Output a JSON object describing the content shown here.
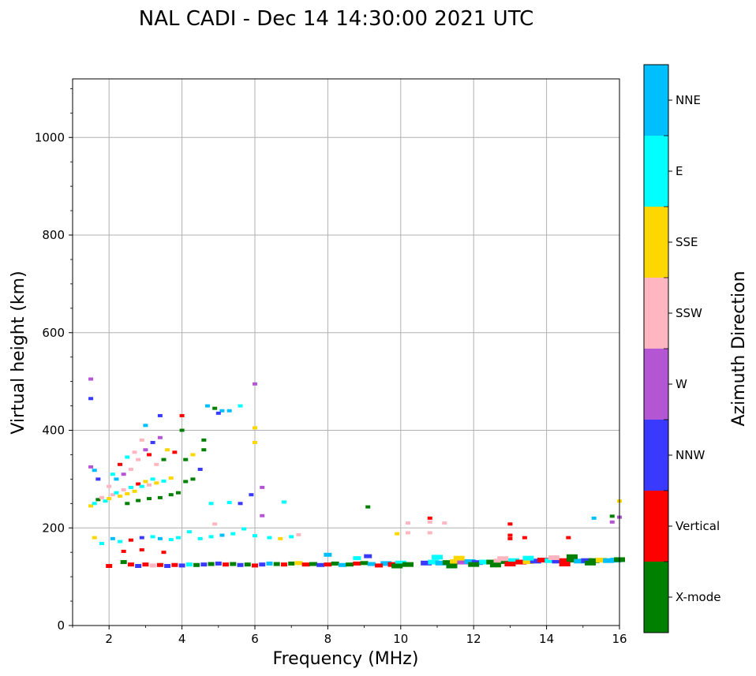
{
  "chart_data": {
    "type": "scatter",
    "title": "NAL CADI - Dec 14 14:30:00 2021 UTC",
    "xlabel": "Frequency (MHz)",
    "ylabel": "Virtual height (km)",
    "xlim": [
      1,
      16
    ],
    "ylim": [
      0,
      1120
    ],
    "xticks": [
      2,
      4,
      6,
      8,
      10,
      12,
      14,
      16
    ],
    "yticks": [
      0,
      200,
      400,
      600,
      800,
      1000
    ],
    "grid": true,
    "colorbar": {
      "label": "Azimuth Direction",
      "categories": [
        {
          "name": "X-mode",
          "color": "#008000"
        },
        {
          "name": "Vertical",
          "color": "#ff0000"
        },
        {
          "name": "NNW",
          "color": "#3a3aff"
        },
        {
          "name": "W",
          "color": "#b455d4"
        },
        {
          "name": "SSW",
          "color": "#ffb6c1"
        },
        {
          "name": "SSE",
          "color": "#ffd700"
        },
        {
          "name": "E",
          "color": "#00ffff"
        },
        {
          "name": "NNE",
          "color": "#00bfff"
        }
      ]
    },
    "echoes": [
      {
        "f": 1.5,
        "h": 505,
        "c": "W"
      },
      {
        "f": 1.5,
        "h": 465,
        "c": "NNW"
      },
      {
        "f": 1.5,
        "h": 325,
        "c": "W"
      },
      {
        "f": 1.6,
        "h": 318,
        "c": "NNE"
      },
      {
        "f": 1.7,
        "h": 300,
        "c": "NNW"
      },
      {
        "f": 1.5,
        "h": 245,
        "c": "SSE"
      },
      {
        "f": 1.6,
        "h": 250,
        "c": "E"
      },
      {
        "f": 1.7,
        "h": 258,
        "c": "X-mode"
      },
      {
        "f": 1.8,
        "h": 262,
        "c": "SSW"
      },
      {
        "f": 1.9,
        "h": 255,
        "c": "E"
      },
      {
        "f": 2.0,
        "h": 260,
        "c": "SSE"
      },
      {
        "f": 2.1,
        "h": 268,
        "c": "SSW"
      },
      {
        "f": 2.2,
        "h": 272,
        "c": "E"
      },
      {
        "f": 2.3,
        "h": 265,
        "c": "SSE"
      },
      {
        "f": 2.4,
        "h": 278,
        "c": "SSW"
      },
      {
        "f": 2.5,
        "h": 270,
        "c": "SSE"
      },
      {
        "f": 2.6,
        "h": 283,
        "c": "E"
      },
      {
        "f": 2.7,
        "h": 275,
        "c": "SSE"
      },
      {
        "f": 2.8,
        "h": 290,
        "c": "Vertical"
      },
      {
        "f": 2.9,
        "h": 285,
        "c": "E"
      },
      {
        "f": 3.0,
        "h": 295,
        "c": "SSE"
      },
      {
        "f": 3.1,
        "h": 288,
        "c": "SSW"
      },
      {
        "f": 3.2,
        "h": 300,
        "c": "E"
      },
      {
        "f": 3.3,
        "h": 292,
        "c": "SSE"
      },
      {
        "f": 3.5,
        "h": 296,
        "c": "E"
      },
      {
        "f": 3.7,
        "h": 302,
        "c": "SSE"
      },
      {
        "f": 2.0,
        "h": 285,
        "c": "SSW"
      },
      {
        "f": 2.2,
        "h": 300,
        "c": "NNE"
      },
      {
        "f": 2.4,
        "h": 310,
        "c": "W"
      },
      {
        "f": 2.6,
        "h": 320,
        "c": "SSW"
      },
      {
        "f": 2.8,
        "h": 340,
        "c": "SSW"
      },
      {
        "f": 3.0,
        "h": 360,
        "c": "W"
      },
      {
        "f": 3.2,
        "h": 375,
        "c": "NNW"
      },
      {
        "f": 3.4,
        "h": 385,
        "c": "W"
      },
      {
        "f": 2.9,
        "h": 380,
        "c": "SSW"
      },
      {
        "f": 3.1,
        "h": 350,
        "c": "Vertical"
      },
      {
        "f": 2.7,
        "h": 355,
        "c": "SSW"
      },
      {
        "f": 2.5,
        "h": 345,
        "c": "E"
      },
      {
        "f": 2.3,
        "h": 330,
        "c": "Vertical"
      },
      {
        "f": 2.1,
        "h": 310,
        "c": "E"
      },
      {
        "f": 3.3,
        "h": 330,
        "c": "SSW"
      },
      {
        "f": 3.5,
        "h": 340,
        "c": "X-mode"
      },
      {
        "f": 3.6,
        "h": 360,
        "c": "SSE"
      },
      {
        "f": 3.8,
        "h": 355,
        "c": "Vertical"
      },
      {
        "f": 3.0,
        "h": 410,
        "c": "NNE"
      },
      {
        "f": 3.4,
        "h": 430,
        "c": "NNW"
      },
      {
        "f": 2.5,
        "h": 250,
        "c": "X-mode"
      },
      {
        "f": 2.8,
        "h": 256,
        "c": "X-mode"
      },
      {
        "f": 3.1,
        "h": 260,
        "c": "X-mode"
      },
      {
        "f": 3.4,
        "h": 262,
        "c": "X-mode"
      },
      {
        "f": 3.7,
        "h": 268,
        "c": "X-mode"
      },
      {
        "f": 3.9,
        "h": 272,
        "c": "X-mode"
      },
      {
        "f": 4.1,
        "h": 295,
        "c": "X-mode"
      },
      {
        "f": 4.3,
        "h": 300,
        "c": "X-mode"
      },
      {
        "f": 4.5,
        "h": 320,
        "c": "NNW"
      },
      {
        "f": 4.1,
        "h": 340,
        "c": "X-mode"
      },
      {
        "f": 4.3,
        "h": 350,
        "c": "SSE"
      },
      {
        "f": 4.6,
        "h": 360,
        "c": "X-mode"
      },
      {
        "f": 4.6,
        "h": 380,
        "c": "X-mode"
      },
      {
        "f": 4.0,
        "h": 400,
        "c": "X-mode"
      },
      {
        "f": 4.0,
        "h": 430,
        "c": "Vertical"
      },
      {
        "f": 4.7,
        "h": 450,
        "c": "NNE"
      },
      {
        "f": 4.9,
        "h": 445,
        "c": "X-mode"
      },
      {
        "f": 5.1,
        "h": 440,
        "c": "NNE"
      },
      {
        "f": 5.0,
        "h": 435,
        "c": "NNW"
      },
      {
        "f": 5.3,
        "h": 440,
        "c": "NNE"
      },
      {
        "f": 5.6,
        "h": 450,
        "c": "E"
      },
      {
        "f": 4.8,
        "h": 250,
        "c": "E"
      },
      {
        "f": 5.3,
        "h": 252,
        "c": "E"
      },
      {
        "f": 5.6,
        "h": 250,
        "c": "NNW"
      },
      {
        "f": 5.9,
        "h": 268,
        "c": "NNW"
      },
      {
        "f": 6.2,
        "h": 283,
        "c": "W"
      },
      {
        "f": 6.2,
        "h": 225,
        "c": "W"
      },
      {
        "f": 6.0,
        "h": 495,
        "c": "W"
      },
      {
        "f": 6.0,
        "h": 405,
        "c": "SSE"
      },
      {
        "f": 6.0,
        "h": 375,
        "c": "SSE"
      },
      {
        "f": 6.8,
        "h": 253,
        "c": "E"
      },
      {
        "f": 9.1,
        "h": 243,
        "c": "X-mode"
      },
      {
        "f": 1.6,
        "h": 180,
        "c": "SSE"
      },
      {
        "f": 1.8,
        "h": 168,
        "c": "E"
      },
      {
        "f": 2.1,
        "h": 178,
        "c": "NNE"
      },
      {
        "f": 2.3,
        "h": 172,
        "c": "E"
      },
      {
        "f": 2.6,
        "h": 175,
        "c": "Vertical"
      },
      {
        "f": 2.9,
        "h": 180,
        "c": "NNW"
      },
      {
        "f": 3.2,
        "h": 182,
        "c": "E"
      },
      {
        "f": 3.4,
        "h": 178,
        "c": "NNE"
      },
      {
        "f": 3.7,
        "h": 176,
        "c": "E"
      },
      {
        "f": 3.9,
        "h": 180,
        "c": "E"
      },
      {
        "f": 4.2,
        "h": 192,
        "c": "E"
      },
      {
        "f": 4.5,
        "h": 178,
        "c": "E"
      },
      {
        "f": 4.8,
        "h": 182,
        "c": "E"
      },
      {
        "f": 5.1,
        "h": 185,
        "c": "NNE"
      },
      {
        "f": 5.4,
        "h": 188,
        "c": "E"
      },
      {
        "f": 5.7,
        "h": 198,
        "c": "E"
      },
      {
        "f": 6.4,
        "h": 180,
        "c": "E"
      },
      {
        "f": 6.7,
        "h": 178,
        "c": "SSE"
      },
      {
        "f": 7.0,
        "h": 182,
        "c": "E"
      },
      {
        "f": 7.2,
        "h": 186,
        "c": "SSW"
      },
      {
        "f": 4.9,
        "h": 208,
        "c": "SSW"
      },
      {
        "f": 6.0,
        "h": 184,
        "c": "E"
      },
      {
        "f": 9.9,
        "h": 188,
        "c": "SSE"
      },
      {
        "f": 10.2,
        "h": 190,
        "c": "SSW"
      },
      {
        "f": 10.2,
        "h": 210,
        "c": "SSW"
      },
      {
        "f": 10.8,
        "h": 212,
        "c": "SSW"
      },
      {
        "f": 10.8,
        "h": 220,
        "c": "Vertical"
      },
      {
        "f": 10.8,
        "h": 190,
        "c": "SSW"
      },
      {
        "f": 11.2,
        "h": 210,
        "c": "SSW"
      },
      {
        "f": 13.0,
        "h": 208,
        "c": "Vertical"
      },
      {
        "f": 13.0,
        "h": 185,
        "c": "Vertical"
      },
      {
        "f": 13.0,
        "h": 178,
        "c": "Vertical"
      },
      {
        "f": 13.4,
        "h": 180,
        "c": "Vertical"
      },
      {
        "f": 14.6,
        "h": 180,
        "c": "Vertical"
      },
      {
        "f": 15.3,
        "h": 220,
        "c": "NNE"
      },
      {
        "f": 15.8,
        "h": 212,
        "c": "W"
      },
      {
        "f": 15.8,
        "h": 224,
        "c": "X-mode"
      },
      {
        "f": 16.0,
        "h": 255,
        "c": "SSE"
      },
      {
        "f": 16.0,
        "h": 222,
        "c": "W"
      },
      {
        "f": 8.0,
        "h": 145,
        "c": "NNE"
      },
      {
        "f": 8.8,
        "h": 138,
        "c": "E"
      },
      {
        "f": 9.1,
        "h": 142,
        "c": "NNW"
      },
      {
        "f": 2.9,
        "h": 155,
        "c": "Vertical"
      },
      {
        "f": 3.5,
        "h": 150,
        "c": "Vertical"
      },
      {
        "f": 2.4,
        "h": 152,
        "c": "Vertical"
      },
      {
        "f": 2.0,
        "h": 122,
        "c": "Vertical"
      },
      {
        "f": 2.4,
        "h": 130,
        "c": "X-mode"
      },
      {
        "f": 2.6,
        "h": 125,
        "c": "Vertical"
      },
      {
        "f": 2.8,
        "h": 122,
        "c": "NNW"
      },
      {
        "f": 3.0,
        "h": 125,
        "c": "Vertical"
      },
      {
        "f": 3.2,
        "h": 123,
        "c": "SSW"
      },
      {
        "f": 3.4,
        "h": 124,
        "c": "Vertical"
      },
      {
        "f": 3.6,
        "h": 122,
        "c": "NNW"
      },
      {
        "f": 3.8,
        "h": 124,
        "c": "Vertical"
      },
      {
        "f": 4.0,
        "h": 123,
        "c": "NNW"
      },
      {
        "f": 4.2,
        "h": 125,
        "c": "E"
      },
      {
        "f": 4.4,
        "h": 124,
        "c": "X-mode"
      },
      {
        "f": 4.6,
        "h": 125,
        "c": "NNW"
      },
      {
        "f": 4.8,
        "h": 126,
        "c": "X-mode"
      },
      {
        "f": 5.0,
        "h": 127,
        "c": "NNW"
      },
      {
        "f": 5.2,
        "h": 125,
        "c": "Vertical"
      },
      {
        "f": 5.4,
        "h": 126,
        "c": "X-mode"
      },
      {
        "f": 5.6,
        "h": 124,
        "c": "NNW"
      },
      {
        "f": 5.8,
        "h": 125,
        "c": "X-mode"
      },
      {
        "f": 6.0,
        "h": 123,
        "c": "Vertical"
      },
      {
        "f": 6.2,
        "h": 125,
        "c": "NNW"
      },
      {
        "f": 6.4,
        "h": 127,
        "c": "NNE"
      },
      {
        "f": 6.6,
        "h": 126,
        "c": "X-mode"
      },
      {
        "f": 6.8,
        "h": 125,
        "c": "Vertical"
      },
      {
        "f": 7.0,
        "h": 127,
        "c": "X-mode"
      },
      {
        "f": 7.2,
        "h": 128,
        "c": "SSE"
      },
      {
        "f": 7.4,
        "h": 125,
        "c": "Vertical"
      },
      {
        "f": 7.6,
        "h": 126,
        "c": "X-mode"
      },
      {
        "f": 7.8,
        "h": 124,
        "c": "NNW"
      },
      {
        "f": 8.0,
        "h": 125,
        "c": "Vertical"
      },
      {
        "f": 8.2,
        "h": 127,
        "c": "X-mode"
      },
      {
        "f": 8.4,
        "h": 124,
        "c": "NNE"
      },
      {
        "f": 8.6,
        "h": 125,
        "c": "X-mode"
      },
      {
        "f": 8.8,
        "h": 127,
        "c": "Vertical"
      },
      {
        "f": 9.0,
        "h": 128,
        "c": "X-mode"
      },
      {
        "f": 9.2,
        "h": 126,
        "c": "NNE"
      },
      {
        "f": 9.6,
        "h": 127,
        "c": "NNE"
      },
      {
        "f": 9.8,
        "h": 125,
        "c": "Vertical"
      },
      {
        "f": 10.0,
        "h": 128,
        "c": "E"
      },
      {
        "f": 10.2,
        "h": 125,
        "c": "X-mode"
      },
      {
        "f": 10.7,
        "h": 128,
        "c": "NNW"
      },
      {
        "f": 10.9,
        "h": 130,
        "c": "E"
      },
      {
        "f": 11.1,
        "h": 128,
        "c": "NNE"
      },
      {
        "f": 11.3,
        "h": 129,
        "c": "X-mode"
      },
      {
        "f": 11.5,
        "h": 131,
        "c": "SSE"
      },
      {
        "f": 11.7,
        "h": 130,
        "c": "W"
      },
      {
        "f": 11.9,
        "h": 131,
        "c": "NNE"
      },
      {
        "f": 12.1,
        "h": 129,
        "c": "NNW"
      },
      {
        "f": 12.3,
        "h": 130,
        "c": "E"
      },
      {
        "f": 12.5,
        "h": 130,
        "c": "X-mode"
      },
      {
        "f": 12.7,
        "h": 132,
        "c": "SSW"
      },
      {
        "f": 12.9,
        "h": 131,
        "c": "X-mode"
      },
      {
        "f": 13.1,
        "h": 133,
        "c": "E"
      },
      {
        "f": 13.3,
        "h": 130,
        "c": "Vertical"
      },
      {
        "f": 13.5,
        "h": 131,
        "c": "SSE"
      },
      {
        "f": 13.7,
        "h": 132,
        "c": "NNW"
      },
      {
        "f": 13.9,
        "h": 134,
        "c": "Vertical"
      },
      {
        "f": 14.1,
        "h": 133,
        "c": "E"
      },
      {
        "f": 14.3,
        "h": 132,
        "c": "NNW"
      },
      {
        "f": 14.5,
        "h": 133,
        "c": "Vertical"
      },
      {
        "f": 14.7,
        "h": 134,
        "c": "X-mode"
      },
      {
        "f": 14.9,
        "h": 132,
        "c": "NNE"
      },
      {
        "f": 15.1,
        "h": 133,
        "c": "NNW"
      },
      {
        "f": 15.3,
        "h": 133,
        "c": "X-mode"
      },
      {
        "f": 15.5,
        "h": 134,
        "c": "SSE"
      },
      {
        "f": 15.7,
        "h": 133,
        "c": "NNE"
      },
      {
        "f": 15.9,
        "h": 134,
        "c": "NNE"
      },
      {
        "f": 16.0,
        "h": 135,
        "c": "X-mode"
      },
      {
        "f": 11.0,
        "h": 140,
        "c": "E"
      },
      {
        "f": 11.6,
        "h": 138,
        "c": "SSE"
      },
      {
        "f": 12.8,
        "h": 137,
        "c": "SSW"
      },
      {
        "f": 13.5,
        "h": 138,
        "c": "E"
      },
      {
        "f": 14.2,
        "h": 139,
        "c": "SSW"
      },
      {
        "f": 14.7,
        "h": 141,
        "c": "X-mode"
      },
      {
        "f": 13.0,
        "h": 126,
        "c": "Vertical"
      },
      {
        "f": 12.0,
        "h": 125,
        "c": "X-mode"
      },
      {
        "f": 12.6,
        "h": 124,
        "c": "X-mode"
      },
      {
        "f": 14.5,
        "h": 126,
        "c": "Vertical"
      },
      {
        "f": 15.2,
        "h": 128,
        "c": "X-mode"
      },
      {
        "f": 9.4,
        "h": 123,
        "c": "Vertical"
      },
      {
        "f": 9.9,
        "h": 122,
        "c": "X-mode"
      },
      {
        "f": 11.4,
        "h": 122,
        "c": "X-mode"
      }
    ]
  }
}
